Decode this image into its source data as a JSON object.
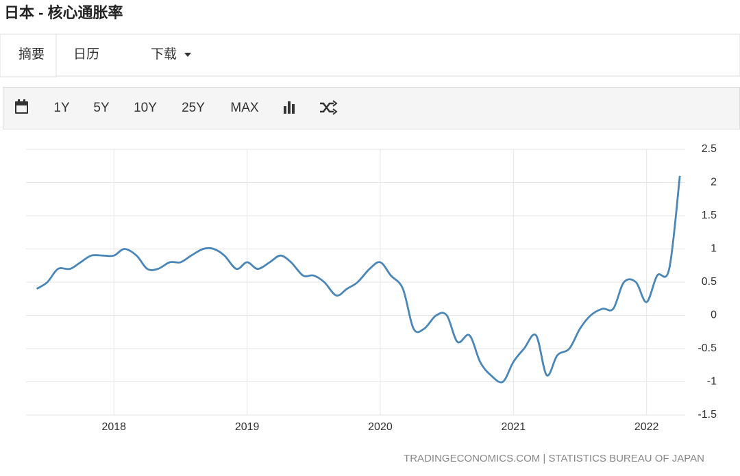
{
  "header": {
    "title": "日本 - 核心通胀率"
  },
  "tabs": [
    "摘要",
    "日历",
    "下载"
  ],
  "toolbar": [
    "1Y",
    "5Y",
    "10Y",
    "25Y",
    "MAX"
  ],
  "source": "TRADINGECONOMICS.COM | STATISTICS BUREAU OF JAPAN",
  "chart_data": {
    "type": "line",
    "x": [
      2017.42,
      2017.5,
      2017.58,
      2017.67,
      2017.75,
      2017.83,
      2017.92,
      2018,
      2018.08,
      2018.17,
      2018.25,
      2018.33,
      2018.42,
      2018.5,
      2018.58,
      2018.67,
      2018.75,
      2018.83,
      2018.92,
      2019,
      2019.08,
      2019.17,
      2019.25,
      2019.33,
      2019.42,
      2019.5,
      2019.58,
      2019.67,
      2019.75,
      2019.83,
      2019.92,
      2020,
      2020.08,
      2020.17,
      2020.25,
      2020.33,
      2020.42,
      2020.5,
      2020.58,
      2020.67,
      2020.75,
      2020.83,
      2020.92,
      2021,
      2021.08,
      2021.17,
      2021.25,
      2021.33,
      2021.42,
      2021.5,
      2021.58,
      2021.67,
      2021.75,
      2021.83,
      2021.92,
      2022,
      2022.08,
      2022.17,
      2022.25
    ],
    "series": [
      {
        "color": "#4a86b8",
        "values": [
          0.4,
          0.5,
          0.7,
          0.7,
          0.8,
          0.9,
          0.9,
          0.9,
          1.0,
          0.9,
          0.7,
          0.7,
          0.8,
          0.8,
          0.9,
          1.0,
          1.0,
          0.9,
          0.7,
          0.8,
          0.7,
          0.8,
          0.9,
          0.8,
          0.6,
          0.6,
          0.5,
          0.3,
          0.4,
          0.5,
          0.7,
          0.8,
          0.6,
          0.4,
          -0.2,
          -0.2,
          0.0,
          0.0,
          -0.4,
          -0.3,
          -0.7,
          -0.9,
          -1.0,
          -0.7,
          -0.5,
          -0.3,
          -0.9,
          -0.6,
          -0.5,
          -0.2,
          0.0,
          0.1,
          0.1,
          0.5,
          0.5,
          0.2,
          0.6,
          0.7,
          2.1
        ]
      }
    ],
    "xlim": [
      2017.34,
      2022.29
    ],
    "xticks": [
      2018,
      2019,
      2020,
      2021,
      2022
    ],
    "ylim": [
      -1.5,
      2.5
    ],
    "yticks": [
      2.5,
      2,
      1.5,
      1,
      0.5,
      0,
      -0.5,
      -1,
      -1.5
    ],
    "grid": true
  }
}
